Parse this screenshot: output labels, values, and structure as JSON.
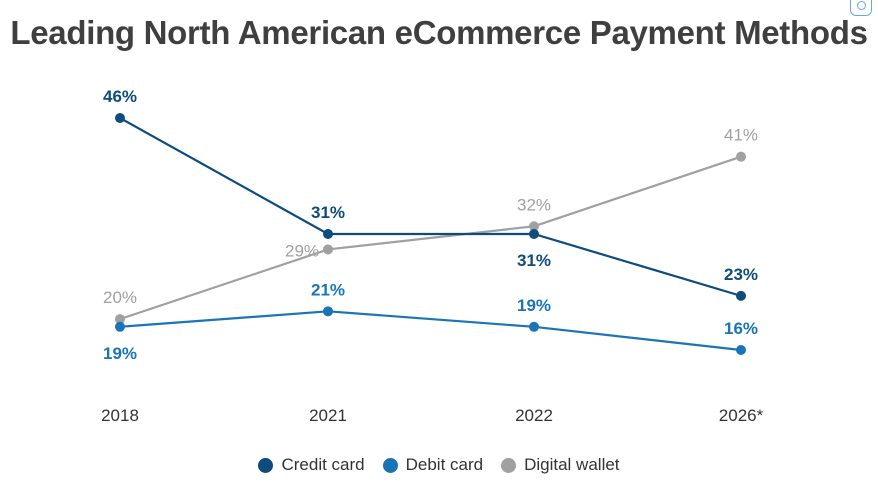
{
  "title": "Leading North American eCommerce Payment Methods",
  "corner_icon": "scan-icon",
  "chart_data": {
    "type": "line",
    "title": "Leading North American eCommerce Payment Methods",
    "categories": [
      "2018",
      "2021",
      "2022",
      "2026*"
    ],
    "series": [
      {
        "name": "Credit card",
        "color": "#0d4c7d",
        "values": [
          46,
          31,
          31,
          23
        ],
        "labels": [
          "46%",
          "31%",
          "31%",
          "23%"
        ]
      },
      {
        "name": "Debit card",
        "color": "#1a74b8",
        "values": [
          19,
          21,
          19,
          16
        ],
        "labels": [
          "19%",
          "21%",
          "19%",
          "16%"
        ]
      },
      {
        "name": "Digital wallet",
        "color": "#a0a0a0",
        "values": [
          20,
          29,
          32,
          41
        ],
        "labels": [
          "20%",
          "29%",
          "32%",
          "41%"
        ]
      }
    ],
    "xlabel": "",
    "ylabel": "",
    "ylim": [
      16,
      46
    ],
    "grid": false,
    "legend": "bottom-center"
  }
}
